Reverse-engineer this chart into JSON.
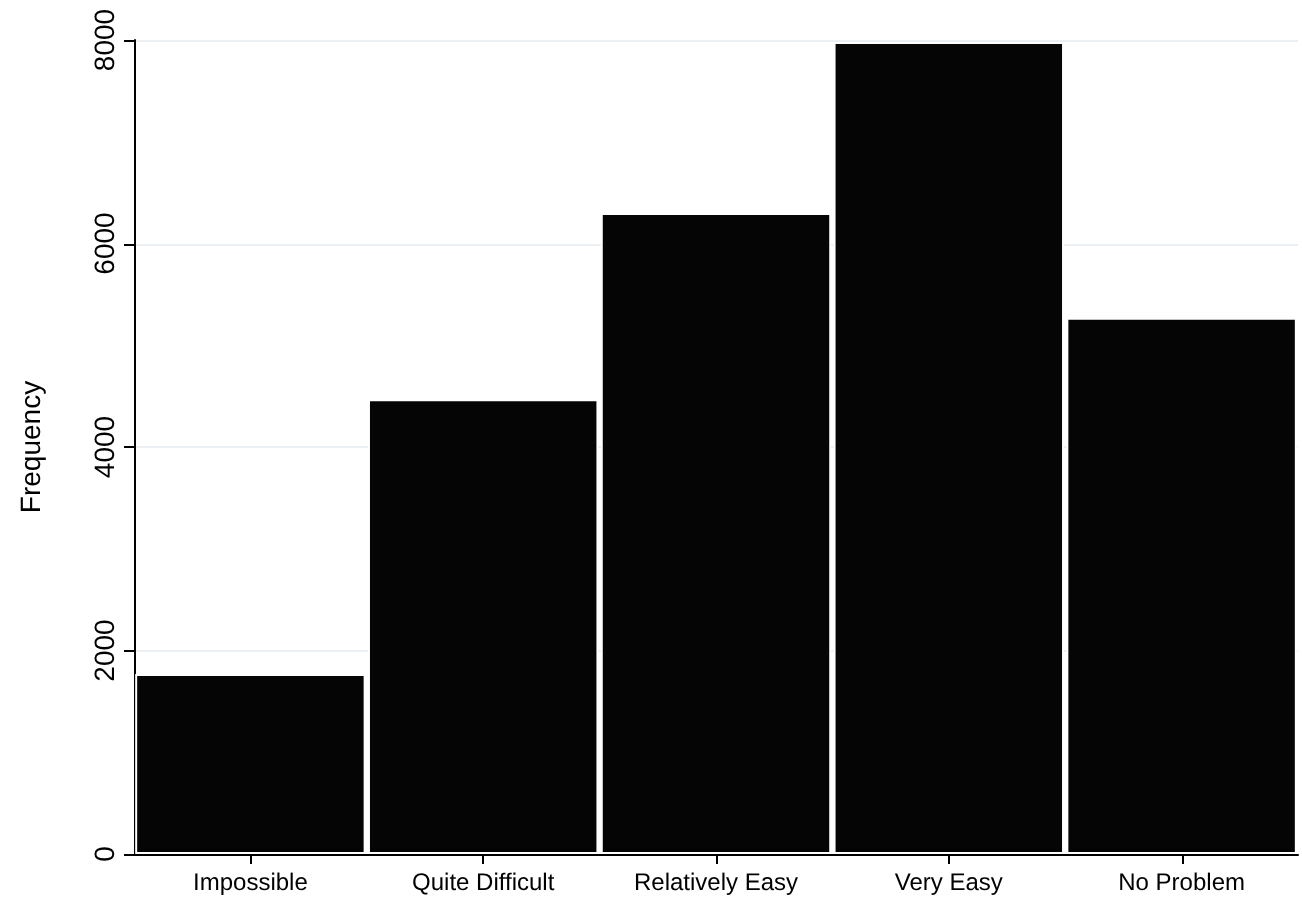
{
  "chart_data": {
    "type": "bar",
    "ylabel": "Frequency",
    "categories": [
      "Impossible",
      "Quite Difficult",
      "Relatively Easy",
      "Very Easy",
      "No Problem"
    ],
    "values": [
      1770,
      4470,
      6300,
      7980,
      5270
    ],
    "color": "#050505",
    "ylim": [
      0,
      8000
    ],
    "yticks": [
      0,
      2000,
      4000,
      6000,
      8000
    ],
    "grid": "y"
  }
}
